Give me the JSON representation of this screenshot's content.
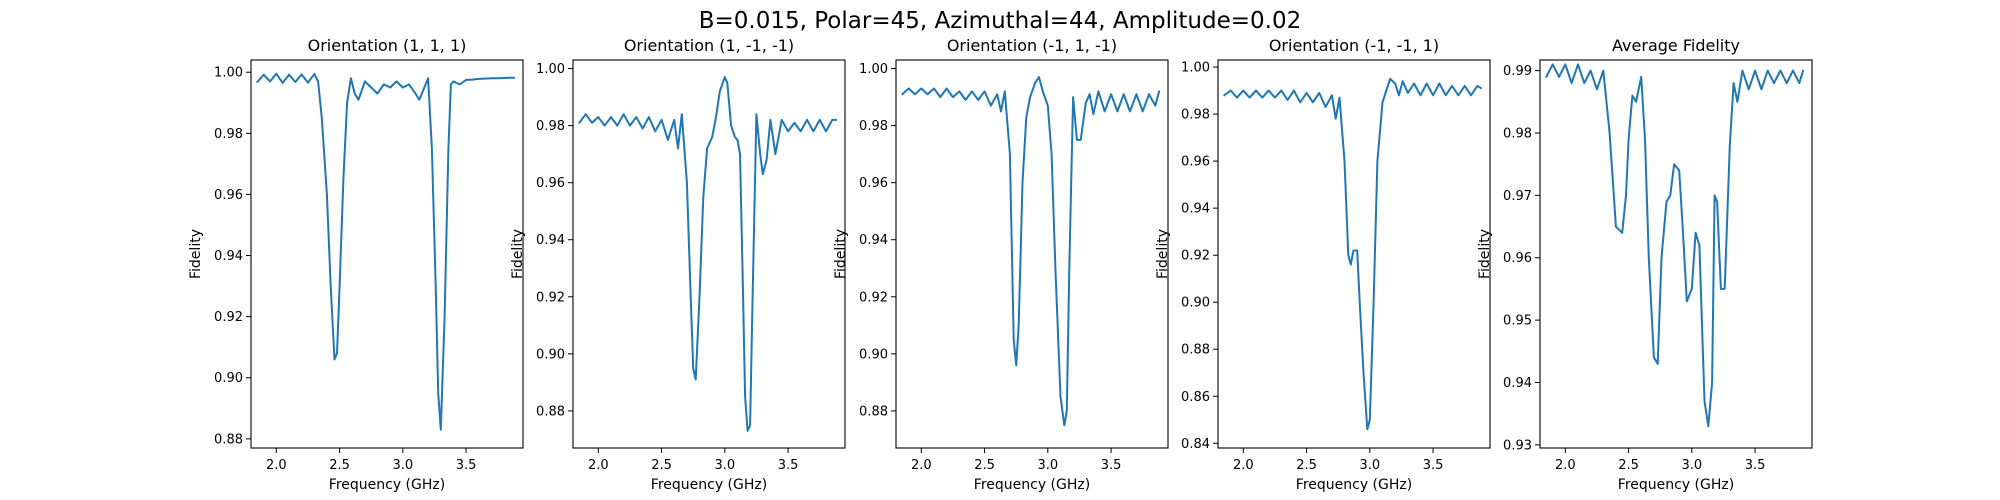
{
  "figure": {
    "suptitle": "B=0.015, Polar=45, Azimuthal=44, Amplitude=0.02",
    "line_color": "#1f77b4"
  },
  "chart_data": [
    {
      "type": "line",
      "title": "Orientation (1, 1, 1)",
      "xlabel": "Frequency (GHz)",
      "ylabel": "Fidelity",
      "xlim": [
        1.8,
        3.95
      ],
      "ylim": [
        0.877,
        1.004
      ],
      "xticks": [
        "2.0",
        "2.5",
        "3.0",
        "3.5"
      ],
      "yticks": [
        "0.88",
        "0.90",
        "0.92",
        "0.94",
        "0.96",
        "0.98",
        "1.00"
      ],
      "grid": false,
      "series": [
        {
          "x": [
            1.85,
            1.9,
            1.95,
            2.0,
            2.05,
            2.1,
            2.15,
            2.2,
            2.25,
            2.3,
            2.33,
            2.36,
            2.4,
            2.43,
            2.46,
            2.48,
            2.5,
            2.53,
            2.56,
            2.59,
            2.62,
            2.65,
            2.7,
            2.75,
            2.8,
            2.85,
            2.9,
            2.95,
            3.0,
            3.05,
            3.1,
            3.13,
            3.16,
            3.2,
            3.23,
            3.26,
            3.28,
            3.3,
            3.33,
            3.36,
            3.38,
            3.4,
            3.45,
            3.5,
            3.55,
            3.6,
            3.65,
            3.7,
            3.75,
            3.8,
            3.85,
            3.88
          ],
          "y": [
            0.9968,
            0.9992,
            0.997,
            0.9995,
            0.9965,
            0.9992,
            0.9968,
            0.9993,
            0.9966,
            0.9994,
            0.997,
            0.985,
            0.96,
            0.93,
            0.906,
            0.908,
            0.93,
            0.965,
            0.99,
            0.998,
            0.993,
            0.991,
            0.997,
            0.995,
            0.993,
            0.996,
            0.995,
            0.997,
            0.995,
            0.996,
            0.993,
            0.991,
            0.994,
            0.998,
            0.975,
            0.93,
            0.895,
            0.883,
            0.92,
            0.975,
            0.996,
            0.997,
            0.996,
            0.9975,
            0.9976,
            0.9978,
            0.9979,
            0.998,
            0.998,
            0.9981,
            0.9982,
            0.9982
          ]
        }
      ]
    },
    {
      "type": "line",
      "title": "Orientation (1, -1, -1)",
      "xlabel": "Frequency (GHz)",
      "ylabel": "Fidelity",
      "xlim": [
        1.8,
        3.95
      ],
      "ylim": [
        0.867,
        1.003
      ],
      "xticks": [
        "2.0",
        "2.5",
        "3.0",
        "3.5"
      ],
      "yticks": [
        "0.88",
        "0.90",
        "0.92",
        "0.94",
        "0.96",
        "0.98",
        "1.00"
      ],
      "grid": false,
      "series": [
        {
          "x": [
            1.85,
            1.9,
            1.95,
            2.0,
            2.05,
            2.1,
            2.15,
            2.2,
            2.25,
            2.3,
            2.35,
            2.4,
            2.45,
            2.5,
            2.55,
            2.6,
            2.63,
            2.66,
            2.7,
            2.73,
            2.75,
            2.77,
            2.8,
            2.83,
            2.86,
            2.9,
            2.93,
            2.96,
            3.0,
            3.02,
            3.05,
            3.08,
            3.1,
            3.12,
            3.14,
            3.16,
            3.18,
            3.2,
            3.22,
            3.25,
            3.28,
            3.3,
            3.33,
            3.36,
            3.4,
            3.45,
            3.5,
            3.55,
            3.6,
            3.65,
            3.7,
            3.75,
            3.8,
            3.85,
            3.88
          ],
          "y": [
            0.981,
            0.984,
            0.981,
            0.983,
            0.98,
            0.983,
            0.98,
            0.984,
            0.98,
            0.983,
            0.979,
            0.983,
            0.978,
            0.982,
            0.975,
            0.982,
            0.972,
            0.984,
            0.96,
            0.92,
            0.895,
            0.891,
            0.92,
            0.955,
            0.972,
            0.976,
            0.983,
            0.992,
            0.997,
            0.995,
            0.98,
            0.976,
            0.975,
            0.97,
            0.93,
            0.885,
            0.873,
            0.875,
            0.92,
            0.984,
            0.97,
            0.963,
            0.968,
            0.982,
            0.97,
            0.982,
            0.978,
            0.981,
            0.978,
            0.982,
            0.978,
            0.982,
            0.978,
            0.982,
            0.982
          ]
        }
      ]
    },
    {
      "type": "line",
      "title": "Orientation (-1, 1, -1)",
      "xlabel": "Frequency (GHz)",
      "ylabel": "Fidelity",
      "xlim": [
        1.8,
        3.95
      ],
      "ylim": [
        0.867,
        1.003
      ],
      "xticks": [
        "2.0",
        "2.5",
        "3.0",
        "3.5"
      ],
      "yticks": [
        "0.88",
        "0.90",
        "0.92",
        "0.94",
        "0.96",
        "0.98",
        "1.00"
      ],
      "grid": false,
      "series": [
        {
          "x": [
            1.85,
            1.9,
            1.95,
            2.0,
            2.05,
            2.1,
            2.15,
            2.2,
            2.25,
            2.3,
            2.35,
            2.4,
            2.45,
            2.5,
            2.55,
            2.6,
            2.63,
            2.66,
            2.7,
            2.73,
            2.75,
            2.77,
            2.8,
            2.83,
            2.86,
            2.9,
            2.93,
            2.96,
            3.0,
            3.03,
            3.06,
            3.1,
            3.13,
            3.15,
            3.17,
            3.2,
            3.23,
            3.26,
            3.3,
            3.33,
            3.36,
            3.4,
            3.45,
            3.5,
            3.55,
            3.6,
            3.65,
            3.7,
            3.75,
            3.8,
            3.85,
            3.88
          ],
          "y": [
            0.991,
            0.993,
            0.991,
            0.993,
            0.991,
            0.993,
            0.99,
            0.993,
            0.99,
            0.992,
            0.989,
            0.992,
            0.989,
            0.992,
            0.987,
            0.991,
            0.985,
            0.992,
            0.97,
            0.905,
            0.896,
            0.91,
            0.96,
            0.983,
            0.99,
            0.995,
            0.997,
            0.992,
            0.987,
            0.97,
            0.93,
            0.885,
            0.875,
            0.88,
            0.93,
            0.99,
            0.975,
            0.975,
            0.988,
            0.991,
            0.984,
            0.992,
            0.985,
            0.991,
            0.985,
            0.991,
            0.985,
            0.991,
            0.985,
            0.991,
            0.987,
            0.992
          ]
        }
      ]
    },
    {
      "type": "line",
      "title": "Orientation (-1, -1, 1)",
      "xlabel": "Frequency (GHz)",
      "ylabel": "Fidelity",
      "xlim": [
        1.8,
        3.95
      ],
      "ylim": [
        0.838,
        1.003
      ],
      "xticks": [
        "2.0",
        "2.5",
        "3.0",
        "3.5"
      ],
      "yticks": [
        "0.84",
        "0.86",
        "0.88",
        "0.90",
        "0.92",
        "0.94",
        "0.96",
        "0.98",
        "1.00"
      ],
      "grid": false,
      "series": [
        {
          "x": [
            1.85,
            1.9,
            1.95,
            2.0,
            2.05,
            2.1,
            2.15,
            2.2,
            2.25,
            2.3,
            2.35,
            2.4,
            2.45,
            2.5,
            2.55,
            2.6,
            2.65,
            2.7,
            2.73,
            2.76,
            2.8,
            2.83,
            2.85,
            2.87,
            2.9,
            2.92,
            2.95,
            2.98,
            3.0,
            3.03,
            3.06,
            3.1,
            3.13,
            3.16,
            3.2,
            3.23,
            3.26,
            3.3,
            3.35,
            3.4,
            3.45,
            3.5,
            3.55,
            3.6,
            3.65,
            3.7,
            3.75,
            3.8,
            3.85,
            3.88
          ],
          "y": [
            0.988,
            0.99,
            0.987,
            0.99,
            0.987,
            0.99,
            0.987,
            0.99,
            0.987,
            0.99,
            0.986,
            0.99,
            0.985,
            0.989,
            0.985,
            0.989,
            0.983,
            0.988,
            0.978,
            0.987,
            0.96,
            0.92,
            0.916,
            0.922,
            0.922,
            0.9,
            0.87,
            0.846,
            0.85,
            0.9,
            0.96,
            0.985,
            0.99,
            0.995,
            0.993,
            0.988,
            0.994,
            0.989,
            0.993,
            0.988,
            0.993,
            0.988,
            0.993,
            0.988,
            0.992,
            0.988,
            0.992,
            0.988,
            0.992,
            0.991
          ]
        }
      ]
    },
    {
      "type": "line",
      "title": "Average Fidelity",
      "xlabel": "Frequency (GHz)",
      "ylabel": "Fidelity",
      "xlim": [
        1.8,
        3.95
      ],
      "ylim": [
        0.9295,
        0.9917
      ],
      "xticks": [
        "2.0",
        "2.5",
        "3.0",
        "3.5"
      ],
      "yticks": [
        "0.93",
        "0.94",
        "0.95",
        "0.96",
        "0.97",
        "0.98",
        "0.99"
      ],
      "grid": false,
      "series": [
        {
          "x": [
            1.85,
            1.9,
            1.95,
            2.0,
            2.05,
            2.1,
            2.15,
            2.2,
            2.25,
            2.3,
            2.35,
            2.4,
            2.45,
            2.48,
            2.5,
            2.53,
            2.56,
            2.6,
            2.63,
            2.66,
            2.7,
            2.73,
            2.76,
            2.8,
            2.83,
            2.86,
            2.9,
            2.93,
            2.96,
            3.0,
            3.03,
            3.06,
            3.1,
            3.13,
            3.16,
            3.18,
            3.2,
            3.23,
            3.26,
            3.3,
            3.33,
            3.36,
            3.4,
            3.45,
            3.5,
            3.55,
            3.6,
            3.65,
            3.7,
            3.75,
            3.8,
            3.85,
            3.88
          ],
          "y": [
            0.989,
            0.991,
            0.989,
            0.991,
            0.988,
            0.991,
            0.988,
            0.99,
            0.987,
            0.99,
            0.98,
            0.965,
            0.964,
            0.97,
            0.979,
            0.986,
            0.985,
            0.989,
            0.979,
            0.96,
            0.944,
            0.943,
            0.96,
            0.969,
            0.97,
            0.975,
            0.974,
            0.964,
            0.953,
            0.955,
            0.964,
            0.962,
            0.937,
            0.933,
            0.94,
            0.97,
            0.969,
            0.955,
            0.955,
            0.978,
            0.988,
            0.985,
            0.99,
            0.987,
            0.99,
            0.987,
            0.99,
            0.988,
            0.99,
            0.988,
            0.99,
            0.988,
            0.99
          ]
        }
      ]
    }
  ]
}
